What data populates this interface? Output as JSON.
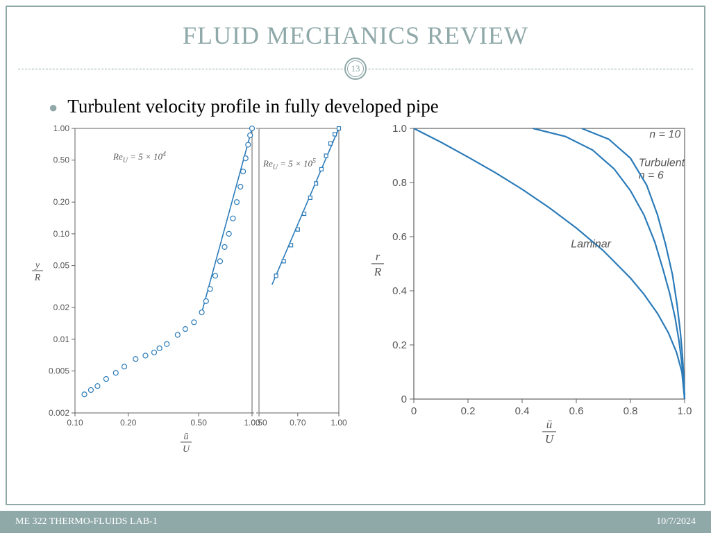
{
  "title": "FLUID MECHANICS REVIEW",
  "page_number": "13",
  "bullet": "Turbulent velocity profile in fully developed pipe",
  "footer_left": "ME 322 THERMO-FLUIDS LAB-1",
  "footer_right": "10/7/2024",
  "colors": {
    "accent": "#8fa8a8",
    "text": "#000000",
    "chart_line": "#2b7bb9",
    "chart_marker_fill": "#ffffff",
    "chart_axis": "#606060",
    "chart_tick": "#808080",
    "chart_label": "#565656"
  },
  "left_chart": {
    "type": "scatter-log",
    "ylabel_html": "y/R",
    "xlabel_html": "ū/U",
    "panel_a": {
      "annotation": "Re_U = 5 × 10^4",
      "xlim": [
        0.1,
        1.0
      ],
      "xticks": [
        0.1,
        0.2,
        0.5,
        1.0
      ],
      "ylim": [
        0.002,
        1.0
      ],
      "yticks": [
        0.002,
        0.005,
        0.01,
        0.02,
        0.05,
        0.1,
        0.2,
        0.5,
        1.0
      ],
      "marker": "circle",
      "marker_size": 5,
      "marker_stroke": "#2b7bb9",
      "points": [
        [
          0.113,
          0.003
        ],
        [
          0.123,
          0.0033
        ],
        [
          0.134,
          0.0036
        ],
        [
          0.15,
          0.0042
        ],
        [
          0.17,
          0.0048
        ],
        [
          0.19,
          0.0055
        ],
        [
          0.22,
          0.0065
        ],
        [
          0.25,
          0.007
        ],
        [
          0.28,
          0.0075
        ],
        [
          0.3,
          0.0082
        ],
        [
          0.33,
          0.009
        ],
        [
          0.38,
          0.011
        ],
        [
          0.42,
          0.0125
        ],
        [
          0.47,
          0.0145
        ],
        [
          0.52,
          0.018
        ],
        [
          0.55,
          0.023
        ],
        [
          0.58,
          0.03
        ],
        [
          0.62,
          0.04
        ],
        [
          0.66,
          0.055
        ],
        [
          0.7,
          0.075
        ],
        [
          0.74,
          0.1
        ],
        [
          0.78,
          0.14
        ],
        [
          0.82,
          0.2
        ],
        [
          0.86,
          0.28
        ],
        [
          0.89,
          0.39
        ],
        [
          0.92,
          0.52
        ],
        [
          0.95,
          0.7
        ],
        [
          0.975,
          0.86
        ],
        [
          1.0,
          1.0
        ]
      ],
      "line": [
        [
          0.52,
          0.018
        ],
        [
          1.0,
          1.0
        ]
      ]
    },
    "panel_b": {
      "annotation": "Re_U = 5 × 10^5",
      "xlim": [
        0.5,
        1.0
      ],
      "xticks": [
        0.5,
        0.7,
        1.0
      ],
      "marker": "square",
      "marker_size": 5,
      "marker_stroke": "#2b7bb9",
      "points": [
        [
          0.58,
          0.04
        ],
        [
          0.62,
          0.055
        ],
        [
          0.66,
          0.078
        ],
        [
          0.7,
          0.11
        ],
        [
          0.74,
          0.155
        ],
        [
          0.78,
          0.22
        ],
        [
          0.82,
          0.3
        ],
        [
          0.86,
          0.41
        ],
        [
          0.895,
          0.55
        ],
        [
          0.93,
          0.72
        ],
        [
          0.965,
          0.88
        ],
        [
          1.0,
          1.0
        ]
      ],
      "line": [
        [
          0.56,
          0.033
        ],
        [
          1.0,
          1.0
        ]
      ]
    }
  },
  "right_chart": {
    "type": "line",
    "ylabel_html": "r/R",
    "xlabel_html": "ū/U",
    "xlim": [
      0,
      1.0
    ],
    "ylim": [
      0,
      1.0
    ],
    "xticks": [
      0,
      0.2,
      0.4,
      0.6,
      0.8,
      1.0
    ],
    "yticks": [
      0,
      0.2,
      0.4,
      0.6,
      0.8,
      1.0
    ],
    "line_color": "#2b7bb9",
    "line_width": 2.2,
    "background": "#ffffff",
    "curves": [
      {
        "label": "Laminar",
        "label_pos": [
          0.58,
          0.56
        ],
        "points": [
          [
            0.0,
            1.0
          ],
          [
            0.1,
            0.949
          ],
          [
            0.2,
            0.894
          ],
          [
            0.3,
            0.837
          ],
          [
            0.4,
            0.775
          ],
          [
            0.5,
            0.707
          ],
          [
            0.6,
            0.632
          ],
          [
            0.7,
            0.548
          ],
          [
            0.8,
            0.447
          ],
          [
            0.85,
            0.387
          ],
          [
            0.9,
            0.316
          ],
          [
            0.94,
            0.245
          ],
          [
            0.97,
            0.173
          ],
          [
            0.99,
            0.1
          ],
          [
            1.0,
            0.0
          ]
        ]
      },
      {
        "label": "Turbulent\nn = 6",
        "label_pos": [
          0.83,
          0.86
        ],
        "points": [
          [
            0.44,
            1.0
          ],
          [
            0.56,
            0.97
          ],
          [
            0.66,
            0.92
          ],
          [
            0.74,
            0.85
          ],
          [
            0.8,
            0.77
          ],
          [
            0.85,
            0.68
          ],
          [
            0.89,
            0.58
          ],
          [
            0.92,
            0.48
          ],
          [
            0.945,
            0.39
          ],
          [
            0.965,
            0.3
          ],
          [
            0.98,
            0.21
          ],
          [
            0.99,
            0.13
          ],
          [
            0.997,
            0.06
          ],
          [
            1.0,
            0.0
          ]
        ]
      },
      {
        "label": "n = 10",
        "label_pos": [
          0.87,
          0.965
        ],
        "points": [
          [
            0.62,
            1.0
          ],
          [
            0.72,
            0.96
          ],
          [
            0.8,
            0.89
          ],
          [
            0.86,
            0.79
          ],
          [
            0.9,
            0.68
          ],
          [
            0.93,
            0.57
          ],
          [
            0.955,
            0.46
          ],
          [
            0.972,
            0.35
          ],
          [
            0.984,
            0.25
          ],
          [
            0.992,
            0.16
          ],
          [
            0.997,
            0.08
          ],
          [
            1.0,
            0.0
          ]
        ]
      }
    ]
  }
}
